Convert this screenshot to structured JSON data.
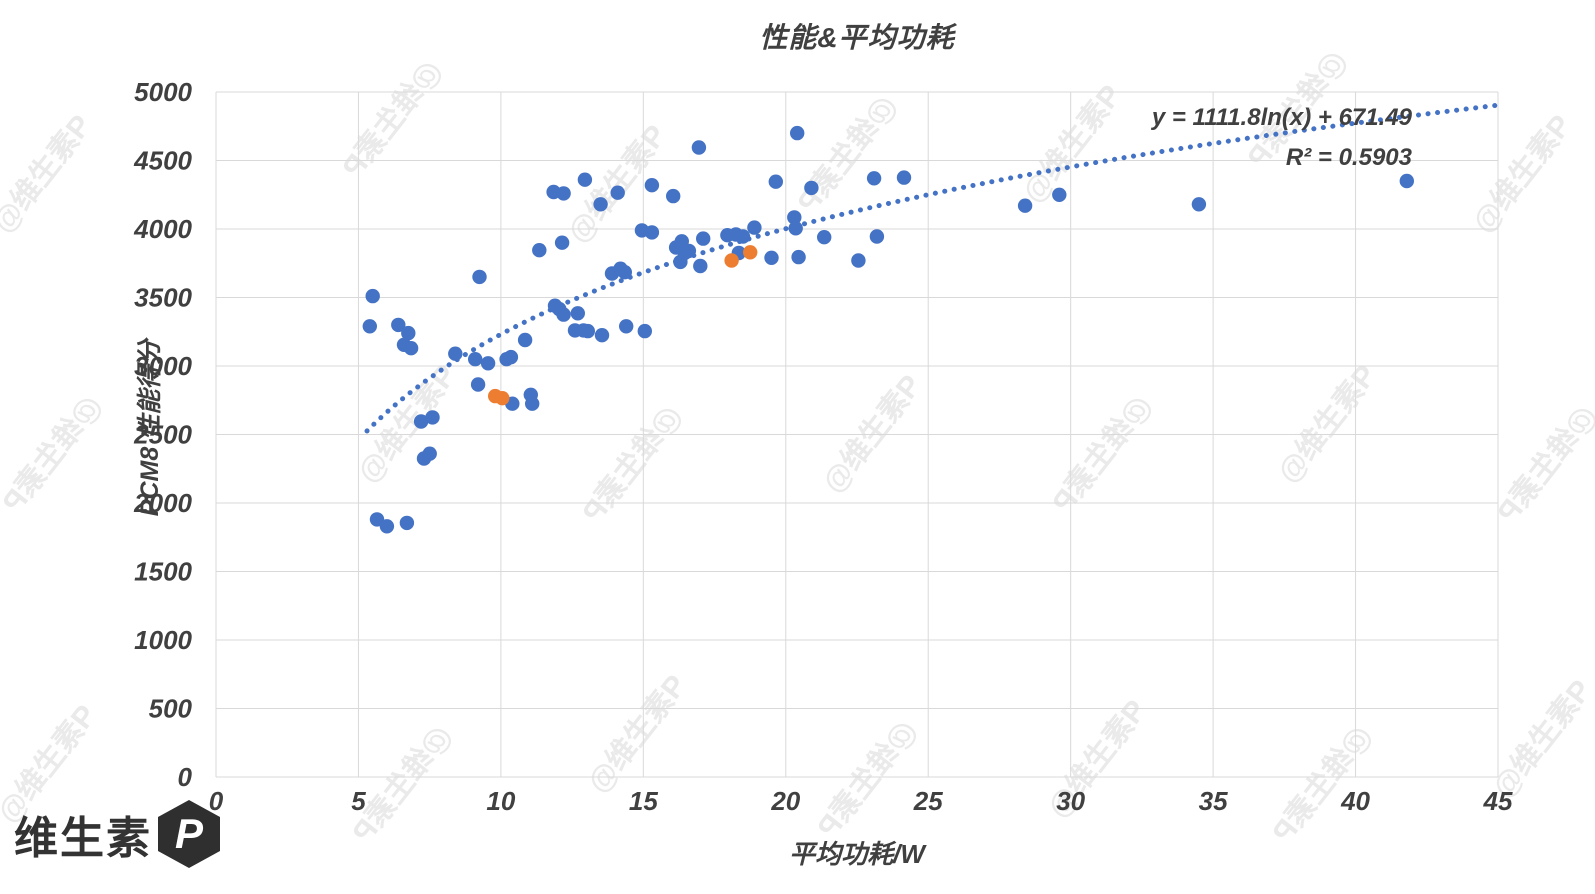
{
  "page": {
    "background": "#ffffff"
  },
  "chart_data": {
    "type": "scatter",
    "title": "性能&平均功耗",
    "xlabel": "平均功耗/W",
    "ylabel": "PCM8 性能得分",
    "xlim": [
      0,
      45
    ],
    "ylim": [
      0,
      5000
    ],
    "xticks": [
      0,
      5,
      10,
      15,
      20,
      25,
      30,
      35,
      40,
      45
    ],
    "yticks": [
      0,
      500,
      1000,
      1500,
      2000,
      2500,
      3000,
      3500,
      4000,
      4500,
      5000
    ],
    "grid": true,
    "legend": "none",
    "series": [
      {
        "name": "blue-series",
        "color": "#4472C4",
        "points": [
          [
            5.4,
            3290
          ],
          [
            5.5,
            3510
          ],
          [
            5.65,
            1880
          ],
          [
            6.0,
            1830
          ],
          [
            6.4,
            3300
          ],
          [
            6.6,
            3155
          ],
          [
            6.7,
            1855
          ],
          [
            6.75,
            3240
          ],
          [
            6.85,
            3130
          ],
          [
            7.2,
            2595
          ],
          [
            7.3,
            2325
          ],
          [
            7.5,
            2360
          ],
          [
            7.6,
            2625
          ],
          [
            8.4,
            3090
          ],
          [
            9.1,
            3050
          ],
          [
            9.2,
            2865
          ],
          [
            9.25,
            3650
          ],
          [
            9.55,
            3020
          ],
          [
            10.2,
            3050
          ],
          [
            10.35,
            3065
          ],
          [
            10.4,
            2725
          ],
          [
            10.85,
            3190
          ],
          [
            11.05,
            2790
          ],
          [
            11.1,
            2725
          ],
          [
            11.35,
            3845
          ],
          [
            11.85,
            4270
          ],
          [
            11.9,
            3440
          ],
          [
            12.05,
            3415
          ],
          [
            12.15,
            3900
          ],
          [
            12.2,
            4260
          ],
          [
            12.2,
            3375
          ],
          [
            12.6,
            3260
          ],
          [
            12.7,
            3385
          ],
          [
            12.9,
            3260
          ],
          [
            12.95,
            4360
          ],
          [
            13.05,
            3255
          ],
          [
            13.5,
            4180
          ],
          [
            13.55,
            3225
          ],
          [
            13.9,
            3675
          ],
          [
            14.1,
            4265
          ],
          [
            14.2,
            3710
          ],
          [
            14.35,
            3685
          ],
          [
            14.4,
            3290
          ],
          [
            14.95,
            3990
          ],
          [
            15.05,
            3255
          ],
          [
            15.3,
            4320
          ],
          [
            15.3,
            3975
          ],
          [
            16.05,
            4240
          ],
          [
            16.15,
            3865
          ],
          [
            16.3,
            3760
          ],
          [
            16.35,
            3910
          ],
          [
            16.45,
            3825
          ],
          [
            16.6,
            3840
          ],
          [
            16.95,
            4595
          ],
          [
            17.0,
            3730
          ],
          [
            17.1,
            3930
          ],
          [
            17.95,
            3955
          ],
          [
            18.25,
            3960
          ],
          [
            18.35,
            3825
          ],
          [
            18.5,
            3945
          ],
          [
            18.9,
            4010
          ],
          [
            19.5,
            3790
          ],
          [
            19.65,
            4345
          ],
          [
            20.3,
            4085
          ],
          [
            20.35,
            4005
          ],
          [
            20.4,
            4700
          ],
          [
            20.45,
            3795
          ],
          [
            20.9,
            4300
          ],
          [
            21.35,
            3940
          ],
          [
            22.55,
            3770
          ],
          [
            23.1,
            4370
          ],
          [
            23.2,
            3945
          ],
          [
            24.15,
            4375
          ],
          [
            28.4,
            4170
          ],
          [
            29.6,
            4250
          ],
          [
            34.5,
            4180
          ],
          [
            41.8,
            4350
          ]
        ]
      },
      {
        "name": "orange-series",
        "color": "#ED7D31",
        "points": [
          [
            9.8,
            2780
          ],
          [
            10.05,
            2765
          ],
          [
            18.1,
            3770
          ],
          [
            18.75,
            3830
          ]
        ]
      }
    ],
    "trendline": {
      "type": "logarithmic",
      "a": 1111.8,
      "b": 671.49,
      "x_range": [
        5.3,
        45
      ],
      "style": "dotted",
      "color": "#4472C4",
      "equation_label": "y = 1111.8ln(x) + 671.49",
      "r2_label": "R² = 0.5903"
    }
  },
  "watermark": {
    "text": "@维生素P"
  },
  "logo": {
    "text": "维生素",
    "badge_letter": "P"
  },
  "colors": {
    "grid": "#d9d9d9",
    "text": "#404040",
    "blue": "#4472C4",
    "orange": "#ED7D31"
  }
}
